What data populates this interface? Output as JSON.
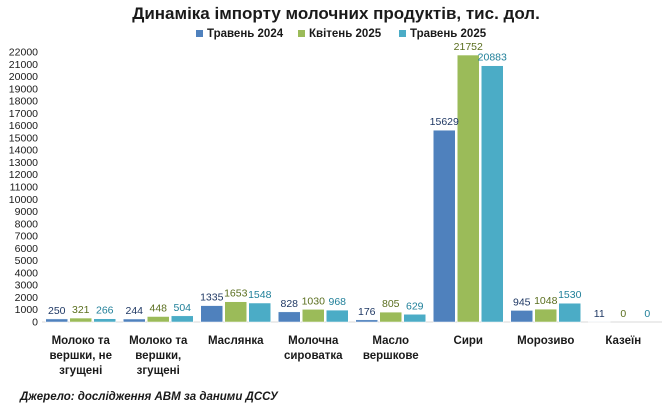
{
  "chart_data": {
    "type": "bar",
    "title": "Динаміка імпорту молочних продуктів, тис. дол.",
    "categories": [
      [
        "Молоко та",
        "вершки, не",
        "згущені"
      ],
      [
        "Молоко та",
        "вершки,",
        "згущені"
      ],
      [
        "Маслянка"
      ],
      [
        "Молочна",
        "сироватка"
      ],
      [
        "Масло",
        "вершкове"
      ],
      [
        "Сири"
      ],
      [
        "Морозиво"
      ],
      [
        "Казеїн"
      ]
    ],
    "series": [
      {
        "name": "Травень 2024",
        "color": "#4f81bd",
        "label_color": "#1f3864",
        "values": [
          250,
          244,
          1335,
          828,
          176,
          15629,
          945,
          11
        ]
      },
      {
        "name": "Квітень 2025",
        "color": "#9bbb59",
        "label_color": "#5a6e1e",
        "values": [
          321,
          448,
          1653,
          1030,
          805,
          21752,
          1048,
          0
        ]
      },
      {
        "name": "Травень 2025",
        "color": "#4bacc6",
        "label_color": "#1f7f99",
        "values": [
          266,
          504,
          1548,
          968,
          629,
          20883,
          1530,
          0
        ]
      }
    ],
    "ylim": [
      0,
      22000
    ],
    "ytick_step": 1000,
    "legend_position": "top",
    "grid": false
  },
  "source": "Джерело: дослідження АВМ за даними ДССУ"
}
